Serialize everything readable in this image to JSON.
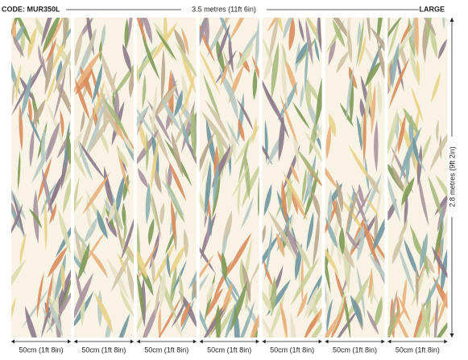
{
  "header": {
    "code": "CODE: MUR350L",
    "width": "3.5 metres (11ft 6in)",
    "size": "LARGE"
  },
  "height": "2.8 metres (9ft 2in)",
  "panels": [
    {
      "label": "50cm (1ft 8in)"
    },
    {
      "label": "50cm (1ft 8in)"
    },
    {
      "label": "50cm (1ft 8in)"
    },
    {
      "label": "50cm (1ft 8in)"
    },
    {
      "label": "50cm (1ft 8in)"
    },
    {
      "label": "50cm (1ft 8in)"
    },
    {
      "label": "50cm (1ft 8in)"
    }
  ]
}
